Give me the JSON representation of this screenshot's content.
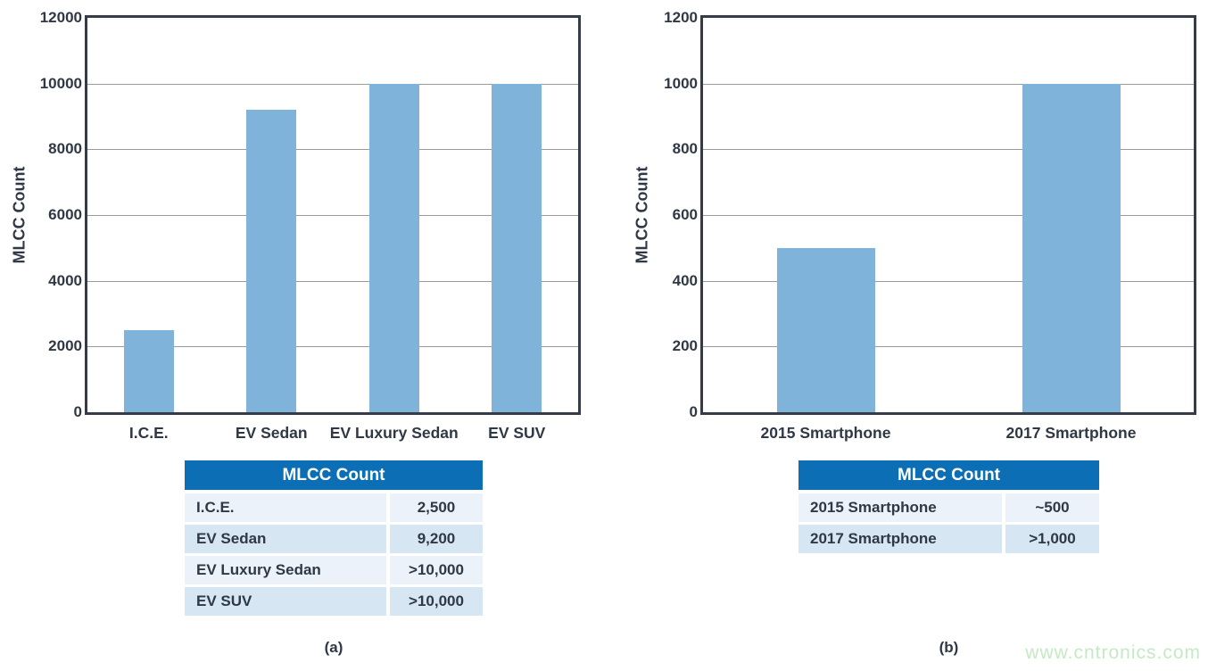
{
  "watermark": "www.cntronics.com",
  "colors": {
    "bar": "#7fb3da",
    "frame": "#363c47",
    "grid": "#9b9b9b",
    "text": "#2f3844",
    "table_header_bg": "#0c6fb6",
    "table_header_text": "#ffffff",
    "row_light": "#ebf2fa",
    "row_dark": "#d7e6f3",
    "watermark_color": "#c6e9c5"
  },
  "chart_data": [
    {
      "type": "bar",
      "title": "",
      "xlabel": "",
      "ylabel": "MLCC Count",
      "categories": [
        "I.C.E.",
        "EV Sedan",
        "EV Luxury Sedan",
        "EV SUV"
      ],
      "values": [
        2500,
        9200,
        10000,
        10000
      ],
      "ylim": [
        0,
        12000
      ],
      "yticks": [
        0,
        2000,
        4000,
        6000,
        8000,
        10000,
        12000
      ],
      "grid": true,
      "legend": false,
      "caption": "(a)",
      "table": {
        "header": "MLCC Count",
        "rows": [
          {
            "label": "I.C.E.",
            "value": "2,500"
          },
          {
            "label": "EV Sedan",
            "value": "9,200"
          },
          {
            "label": "EV Luxury Sedan",
            "value": ">10,000"
          },
          {
            "label": "EV SUV",
            "value": ">10,000"
          }
        ]
      }
    },
    {
      "type": "bar",
      "title": "",
      "xlabel": "",
      "ylabel": "MLCC Count",
      "categories": [
        "2015 Smartphone",
        "2017 Smartphone"
      ],
      "values": [
        500,
        1000
      ],
      "ylim": [
        0,
        1200
      ],
      "yticks": [
        0,
        200,
        400,
        600,
        800,
        1000,
        1200
      ],
      "grid": true,
      "legend": false,
      "caption": "(b)",
      "table": {
        "header": "MLCC Count",
        "rows": [
          {
            "label": "2015 Smartphone",
            "value": "~500"
          },
          {
            "label": "2017 Smartphone",
            "value": ">1,000"
          }
        ]
      }
    }
  ]
}
